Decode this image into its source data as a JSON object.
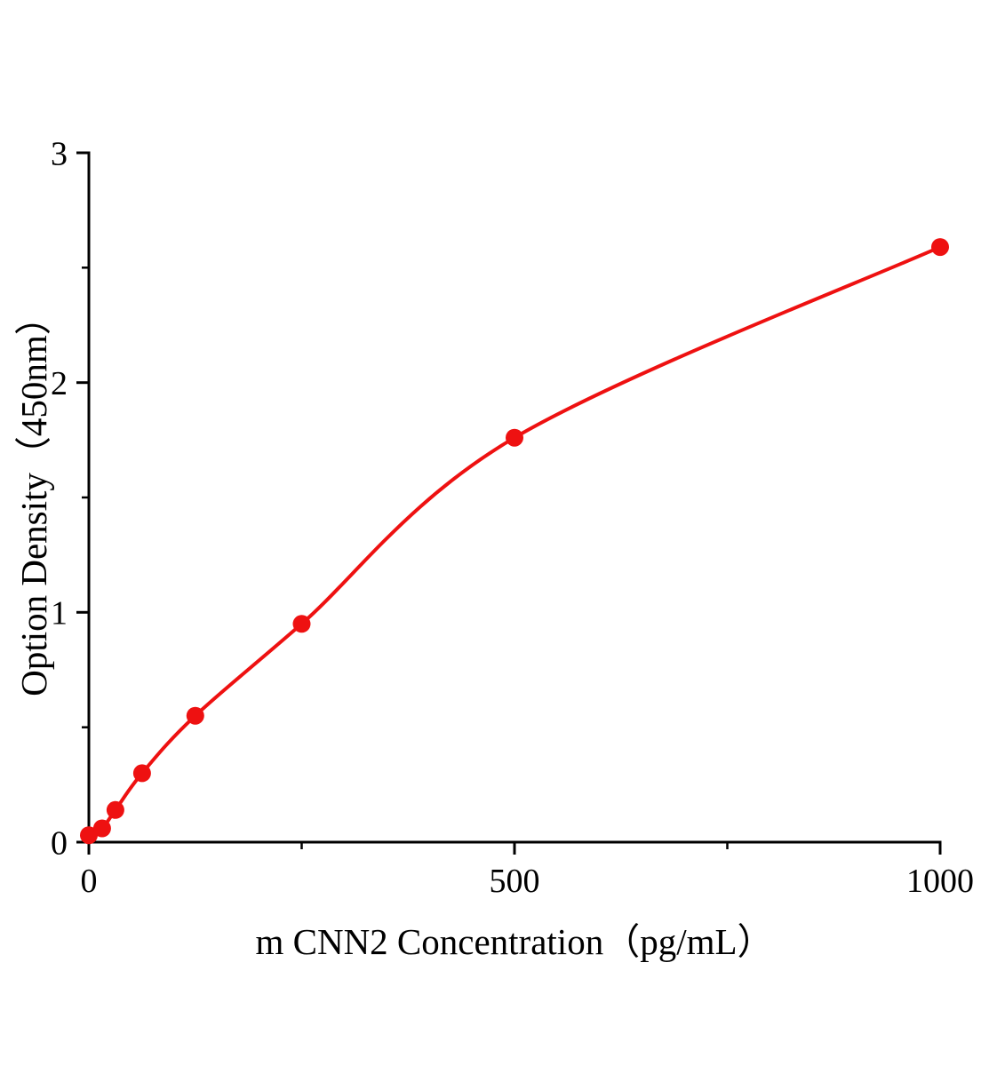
{
  "figure": {
    "background": "#ffffff"
  },
  "chart_data": {
    "type": "scatter",
    "subtype": "elisa-standard-curve-with-fitted-line",
    "title": "",
    "xlabel": "m CNN2 Concentration（pg/mL）",
    "ylabel": "Option Density（450nm）",
    "x": [
      0,
      15.6,
      31.25,
      62.5,
      125,
      250,
      500,
      1000
    ],
    "y": [
      0.03,
      0.06,
      0.14,
      0.3,
      0.55,
      0.95,
      1.76,
      2.59
    ],
    "xlim": [
      0,
      1000
    ],
    "ylim": [
      0,
      3
    ],
    "x_major_ticks": [
      0,
      500,
      1000
    ],
    "x_major_tick_labels": [
      "0",
      "500",
      "1000"
    ],
    "x_minor_ticks": [
      250,
      750
    ],
    "y_major_ticks": [
      0,
      1,
      2,
      3
    ],
    "y_major_tick_labels": [
      "0",
      "1",
      "2",
      "3"
    ],
    "y_minor_ticks": [
      0.5,
      1.5,
      2.5
    ],
    "grid": false,
    "legend": false,
    "line_color": "#ee1111",
    "point_color": "#ee1111",
    "axis_color": "#000000"
  }
}
